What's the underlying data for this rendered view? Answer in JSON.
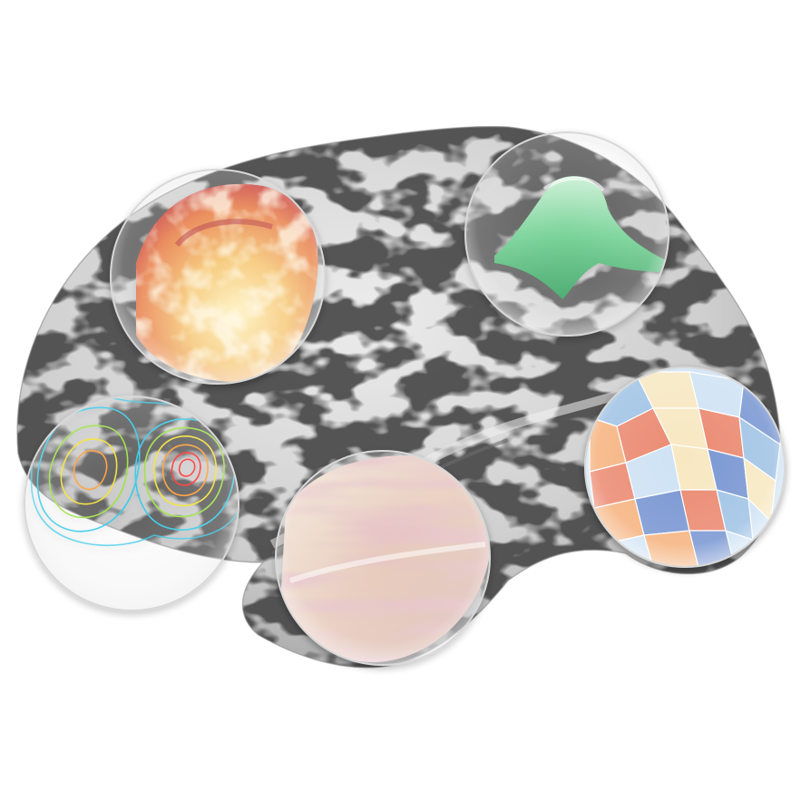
{
  "scene": {
    "background_color": "#ffffff",
    "subject": "brain-surface",
    "colors": {
      "sulcus": "#4a4a4a",
      "gyrus": "#c9c9c9",
      "highlight": "#e9e9e9",
      "lens_glass": "#ffffff"
    }
  },
  "lenses": [
    {
      "id": "frontal-heat-lens",
      "pattern": "heat-map",
      "colors": [
        "#c0303a",
        "#e8804a",
        "#f6c878",
        "#fff2c0"
      ]
    },
    {
      "id": "parietal-green-lens",
      "pattern": "surface-peak",
      "colors": [
        "#2f9e5a",
        "#6fcf90",
        "#c9f0d4"
      ]
    },
    {
      "id": "occipital-parcel-lens",
      "pattern": "parcellation",
      "colors": [
        "#e76f51",
        "#f4a261",
        "#f6e3b4",
        "#8ab6e0",
        "#5a7ec8",
        "#c4dcf2"
      ]
    },
    {
      "id": "temporal-pink-lens",
      "pattern": "smooth-map",
      "colors": [
        "#c98a92",
        "#e6c8b8",
        "#f2e6d8"
      ]
    },
    {
      "id": "prefrontal-contour-lens",
      "pattern": "contours",
      "colors": [
        "#ff3030",
        "#ff9a30",
        "#f2e030",
        "#9ae040",
        "#30c8e8"
      ]
    }
  ]
}
